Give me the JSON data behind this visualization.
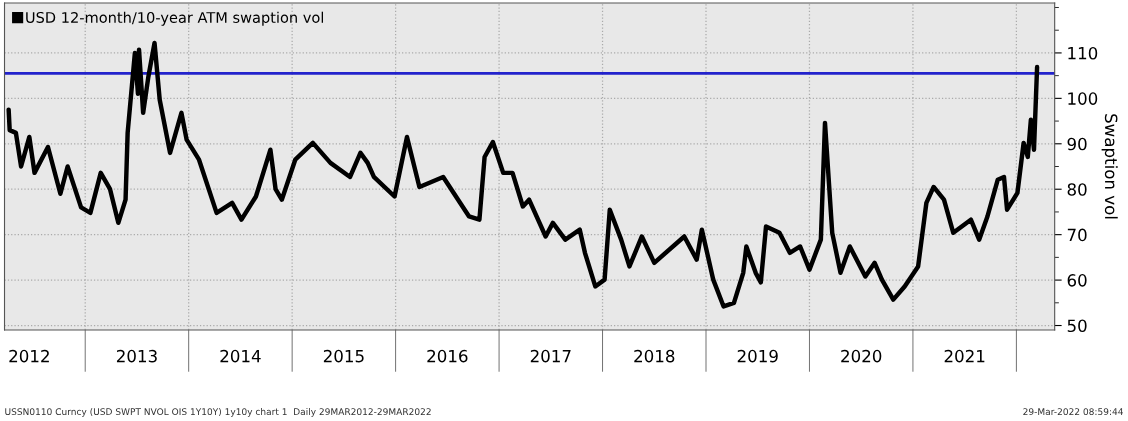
{
  "chart_data": {
    "type": "line",
    "ylabel": "Swaption vol",
    "x": [
      2012.26,
      2012.27,
      2012.33,
      2012.38,
      2012.46,
      2012.51,
      2012.64,
      2012.76,
      2012.83,
      2012.96,
      2013.05,
      2013.15,
      2013.24,
      2013.32,
      2013.39,
      2013.41,
      2013.48,
      2013.51,
      2013.52,
      2013.56,
      2013.61,
      2013.67,
      2013.72,
      2013.82,
      2013.93,
      2013.98,
      2014.1,
      2014.27,
      2014.42,
      2014.51,
      2014.65,
      2014.79,
      2014.84,
      2014.9,
      2015.03,
      2015.2,
      2015.37,
      2015.56,
      2015.66,
      2015.73,
      2015.79,
      2015.99,
      2016.11,
      2016.23,
      2016.46,
      2016.71,
      2016.81,
      2016.86,
      2016.94,
      2017.04,
      2017.13,
      2017.23,
      2017.29,
      2017.45,
      2017.52,
      2017.64,
      2017.78,
      2017.83,
      2017.93,
      2018.02,
      2018.07,
      2018.18,
      2018.26,
      2018.38,
      2018.5,
      2018.79,
      2018.91,
      2018.96,
      2019.07,
      2019.17,
      2019.27,
      2019.36,
      2019.39,
      2019.48,
      2019.53,
      2019.58,
      2019.71,
      2019.81,
      2019.91,
      2020.0,
      2020.11,
      2020.15,
      2020.22,
      2020.3,
      2020.39,
      2020.54,
      2020.63,
      2020.7,
      2020.81,
      2020.92,
      2021.05,
      2021.13,
      2021.2,
      2021.3,
      2021.39,
      2021.56,
      2021.64,
      2021.72,
      2021.82,
      2021.88,
      2021.91,
      2022.01,
      2022.07,
      2022.11,
      2022.14,
      2022.17,
      2022.2
    ],
    "series": [
      {
        "name": "USD 12-month/10-year ATM swaption vol",
        "color": "#000000",
        "values": [
          97.5,
          93,
          92.4,
          85,
          91.5,
          83.6,
          89.3,
          79,
          85,
          76,
          74.8,
          83.6,
          80,
          72.6,
          77.7,
          92.4,
          110,
          101,
          110.7,
          96.8,
          104.7,
          112.2,
          99.7,
          88,
          96.8,
          90.9,
          86.5,
          74.8,
          77,
          73.3,
          78.4,
          88.7,
          80,
          77.7,
          86.5,
          90.2,
          85.8,
          82.7,
          88,
          85.8,
          82.7,
          78.4,
          91.5,
          80.5,
          82.7,
          74,
          73.3,
          87.1,
          90.4,
          83.6,
          83.6,
          76.2,
          77.7,
          69.6,
          72.6,
          68.9,
          71.1,
          66,
          58.6,
          60.1,
          75.5,
          68.9,
          63,
          69.6,
          63.8,
          69.6,
          64.5,
          71.1,
          60.1,
          54.2,
          55,
          61.6,
          67.4,
          61.6,
          59.5,
          71.8,
          70.4,
          66,
          67.4,
          62.3,
          68.9,
          94.6,
          70.4,
          61.6,
          67.4,
          60.8,
          63.8,
          60.1,
          55.7,
          58.6,
          63,
          77,
          80.5,
          77.7,
          70.4,
          73.3,
          68.9,
          74,
          82.1,
          82.7,
          75.5,
          79.2,
          90.2,
          87.1,
          95.3,
          88.7,
          106.9
        ]
      }
    ],
    "xlim": [
      2012.22,
      2022.37
    ],
    "xticks": [
      {
        "value": 2012.46,
        "label": "2012"
      },
      {
        "value": 2013.5,
        "label": "2013"
      },
      {
        "value": 2014.5,
        "label": "2014"
      },
      {
        "value": 2015.5,
        "label": "2015"
      },
      {
        "value": 2016.5,
        "label": "2016"
      },
      {
        "value": 2017.5,
        "label": "2017"
      },
      {
        "value": 2018.5,
        "label": "2018"
      },
      {
        "value": 2019.5,
        "label": "2019"
      },
      {
        "value": 2020.5,
        "label": "2020"
      },
      {
        "value": 2021.5,
        "label": "2021"
      },
      {
        "value": 2013,
        "label": null
      },
      {
        "value": 2014,
        "label": null
      },
      {
        "value": 2015,
        "label": null
      },
      {
        "value": 2016,
        "label": null
      },
      {
        "value": 2017,
        "label": null
      },
      {
        "value": 2018,
        "label": null
      },
      {
        "value": 2019,
        "label": null
      },
      {
        "value": 2020,
        "label": null
      },
      {
        "value": 2021,
        "label": null
      },
      {
        "value": 2022,
        "label": null
      }
    ],
    "ylim": [
      49,
      121
    ],
    "yticks": [
      50,
      60,
      70,
      80,
      90,
      100,
      110,
      {
        "value": 55,
        "label": null
      },
      {
        "value": 65,
        "label": null
      },
      {
        "value": 75,
        "label": null
      },
      {
        "value": 85,
        "label": null
      },
      {
        "value": 95,
        "label": null
      },
      {
        "value": 105,
        "label": null
      },
      {
        "value": 115,
        "label": null
      },
      {
        "value": 120,
        "label": null
      }
    ],
    "ref_lines": [
      {
        "axis": "y",
        "value": 105.5,
        "color": "#2222cc",
        "line_style": "solid"
      }
    ],
    "grid": true,
    "legend": "top left",
    "line_style": "solid",
    "marker": "none",
    "annotations": [
      "USSN0110 Curncy (USD SWPT NVOL OIS 1Y10Y) 1y10y chart 1  Daily 29MAR2012-29MAR2022",
      "29-Mar-2022 08:59:44"
    ]
  }
}
